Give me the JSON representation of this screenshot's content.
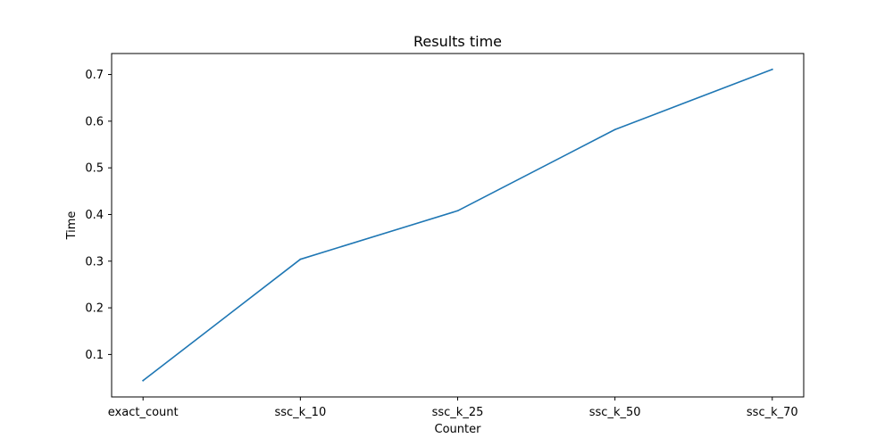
{
  "chart_data": {
    "type": "line",
    "title": "Results time",
    "xlabel": "Counter",
    "ylabel": "Time",
    "categories": [
      "exact_count",
      "ssc_k_10",
      "ssc_k_25",
      "ssc_k_50",
      "ssc_k_70"
    ],
    "series": [
      {
        "values": [
          0.044,
          0.304,
          0.408,
          0.582,
          0.711
        ],
        "color": "#1f77b4"
      }
    ],
    "ylim": [
      0.009,
      0.745
    ],
    "yticks": [
      0.1,
      0.2,
      0.3,
      0.4,
      0.5,
      0.6,
      0.7
    ],
    "ytick_labels": [
      "0.1",
      "0.2",
      "0.3",
      "0.4",
      "0.5",
      "0.6",
      "0.7"
    ],
    "grid": false,
    "legend": "none"
  }
}
